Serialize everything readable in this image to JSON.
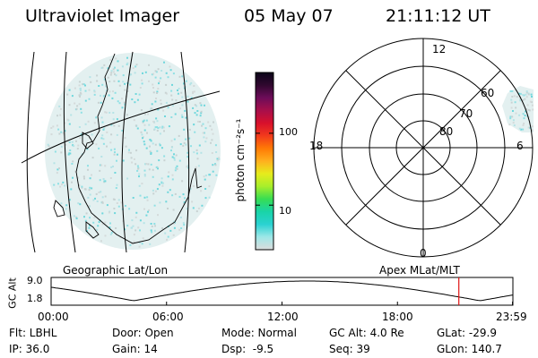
{
  "header": {
    "instrument": "Ultraviolet Imager",
    "date": "05 May 07",
    "time": "21:11:12 UT"
  },
  "colorbar": {
    "unit_label": "photon cm⁻²s⁻¹",
    "tick_labels": [
      "100",
      "10"
    ],
    "tick_values": [
      100,
      10
    ],
    "log_range": [
      2.4,
      700
    ],
    "colors": [
      "#dcdcdc",
      "#9ee7e7",
      "#2ad2d2",
      "#19d4a8",
      "#37dd53",
      "#a8ee2b",
      "#e6ec1c",
      "#ffb01e",
      "#ff7a05",
      "#f23a1c",
      "#d8102c",
      "#a80f4a",
      "#6d0c59",
      "#30082f",
      "#0a0418"
    ]
  },
  "map_labels": {
    "geographic": "Geographic Lat/Lon",
    "apex": "Apex MLat/MLT"
  },
  "polar_plot": {
    "mlt_labels": {
      "top": "12",
      "bottom": "0",
      "left": "18",
      "right": "6"
    },
    "lat_labels": [
      "60",
      "70",
      "80"
    ]
  },
  "altitude_plot": {
    "y_title": "GC Alt",
    "y_ticks": [
      "9.0",
      "1.8"
    ],
    "x_ticks": [
      "00:00",
      "06:00",
      "12:00",
      "18:00",
      "23:59"
    ],
    "current_time_hours": 21.19,
    "marker_color": "#e01515"
  },
  "info": {
    "filter": "Flt: LBHL",
    "door": "Door: Open",
    "mode": "Mode: Normal",
    "gc_alt": "GC Alt: 4.0 Re",
    "glat": "GLat: -29.9",
    "ip": "IP: 36.0",
    "gain": "Gain: 14",
    "dsp": "Dsp:  -9.5",
    "seq": "Seq: 39",
    "glon": "GLon: 140.7"
  }
}
